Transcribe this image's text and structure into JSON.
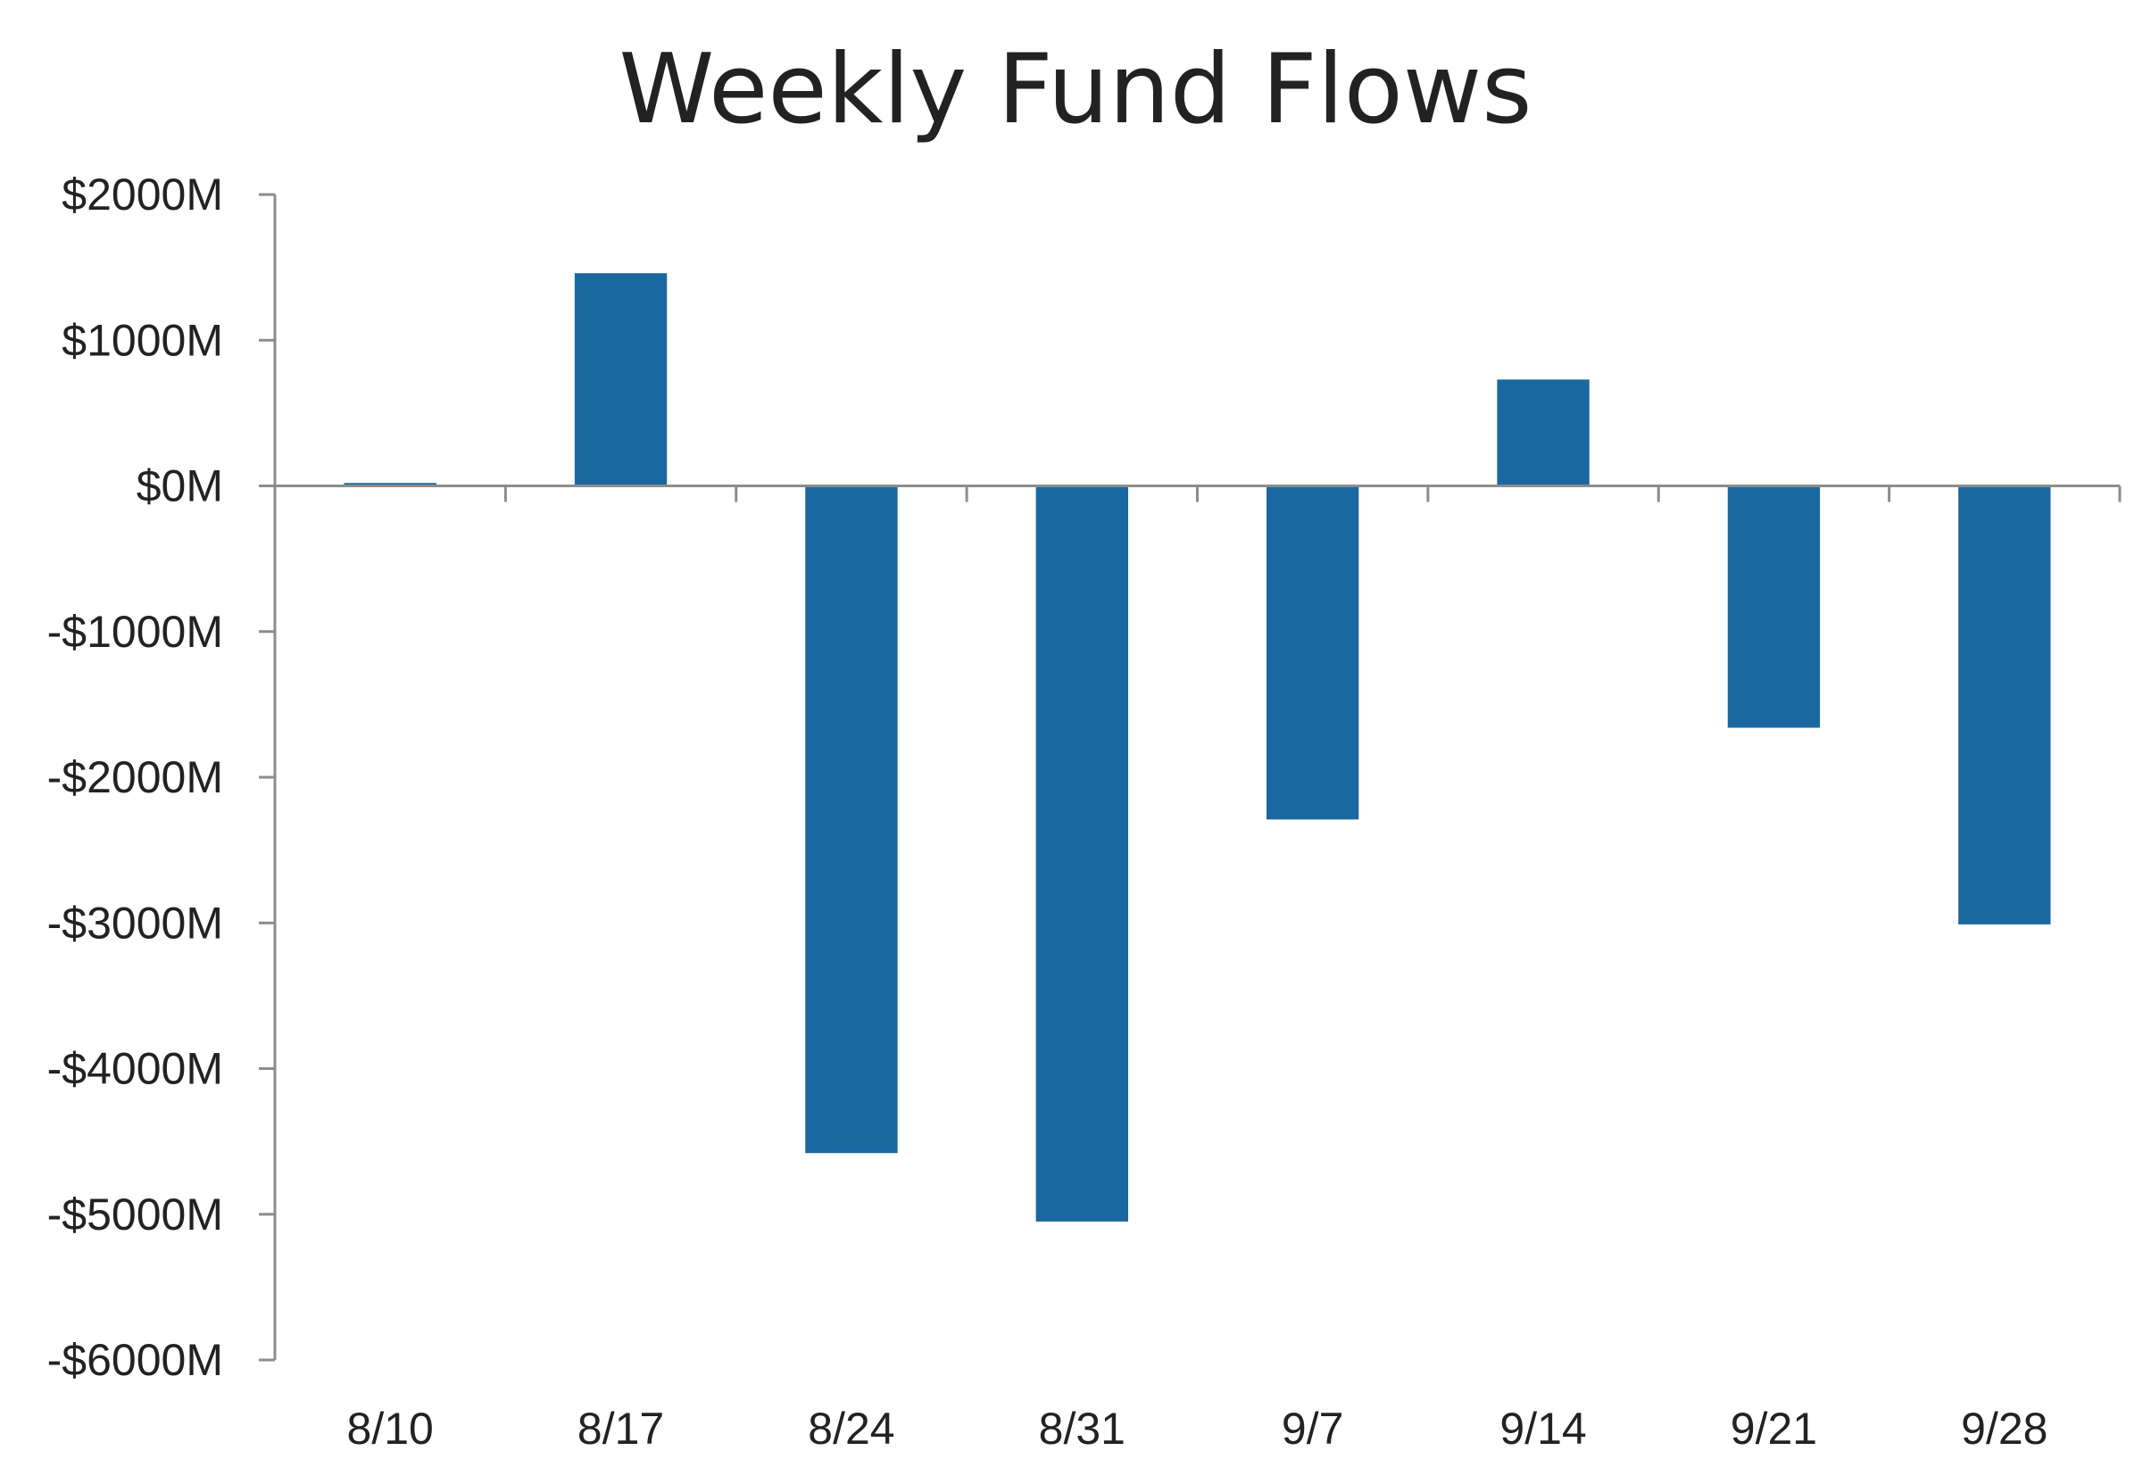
{
  "chart_data": {
    "type": "bar",
    "title": "Weekly Fund Flows",
    "xlabel": "",
    "ylabel": "",
    "categories": [
      "8/10",
      "8/17",
      "8/24",
      "8/31",
      "9/7",
      "9/14",
      "9/21",
      "9/28"
    ],
    "values": [
      20,
      1460,
      -4580,
      -5050,
      -2290,
      730,
      -1660,
      -3010
    ],
    "ylim": [
      -6000,
      2000
    ],
    "yticks": [
      2000,
      1000,
      0,
      -1000,
      -2000,
      -3000,
      -4000,
      -5000,
      -6000
    ],
    "ytick_labels": [
      "$2000M",
      "$1000M",
      "$0M",
      "-$1000M",
      "-$2000M",
      "-$3000M",
      "-$4000M",
      "-$5000M",
      "-$6000M"
    ],
    "grid": false,
    "legend": "none",
    "bar_color": "#1a68a0",
    "axis_color": "#8c8c8c"
  }
}
